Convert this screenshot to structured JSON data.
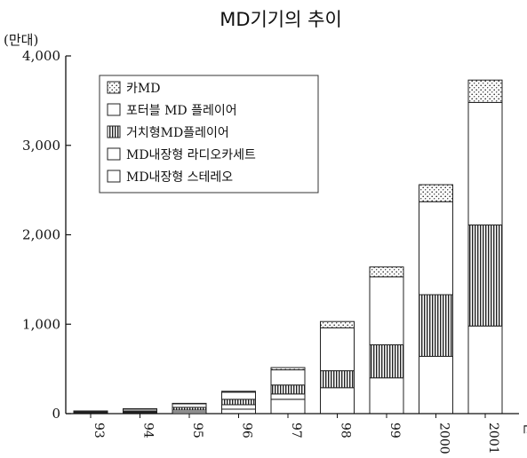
{
  "chart_data": {
    "type": "bar",
    "stacked": true,
    "title": "MD기기의 추이",
    "ylabel": "(만대)",
    "xlabel": "년",
    "ylim": [
      0,
      4000
    ],
    "yticks": [
      0,
      1000,
      2000,
      3000,
      4000
    ],
    "ytick_labels": [
      "0",
      "1,000",
      "2,000",
      "3,000",
      "4,000"
    ],
    "categories": [
      "93",
      "94",
      "95",
      "96",
      "97",
      "98",
      "99",
      "2000",
      "2001"
    ],
    "series": [
      {
        "name": "MD내장형 스테레오",
        "values": [
          5,
          10,
          20,
          50,
          160,
          290,
          400,
          640,
          980
        ]
      },
      {
        "name": "MD내장형 라디오카세트",
        "values": [
          5,
          10,
          20,
          50,
          60,
          0,
          0,
          0,
          0
        ]
      },
      {
        "name": "거치형MD플레이어",
        "values": [
          5,
          10,
          30,
          60,
          100,
          190,
          370,
          690,
          1130
        ]
      },
      {
        "name": "포터블 MD 플레이어",
        "values": [
          10,
          20,
          40,
          80,
          170,
          480,
          760,
          1040,
          1370
        ]
      },
      {
        "name": "카MD",
        "values": [
          5,
          5,
          5,
          10,
          25,
          70,
          110,
          190,
          250
        ]
      }
    ],
    "legend_order": [
      "카MD",
      "포터블 MD 플레이어",
      "거치형MD플레이어",
      "MD내장형 라디오카세트",
      "MD내장형 스테레오"
    ],
    "legend_position": "upper-left",
    "grid": false,
    "colors": {
      "axis": "#111111",
      "bar_fill": "#ffffff",
      "bar_stroke": "#222222"
    }
  }
}
